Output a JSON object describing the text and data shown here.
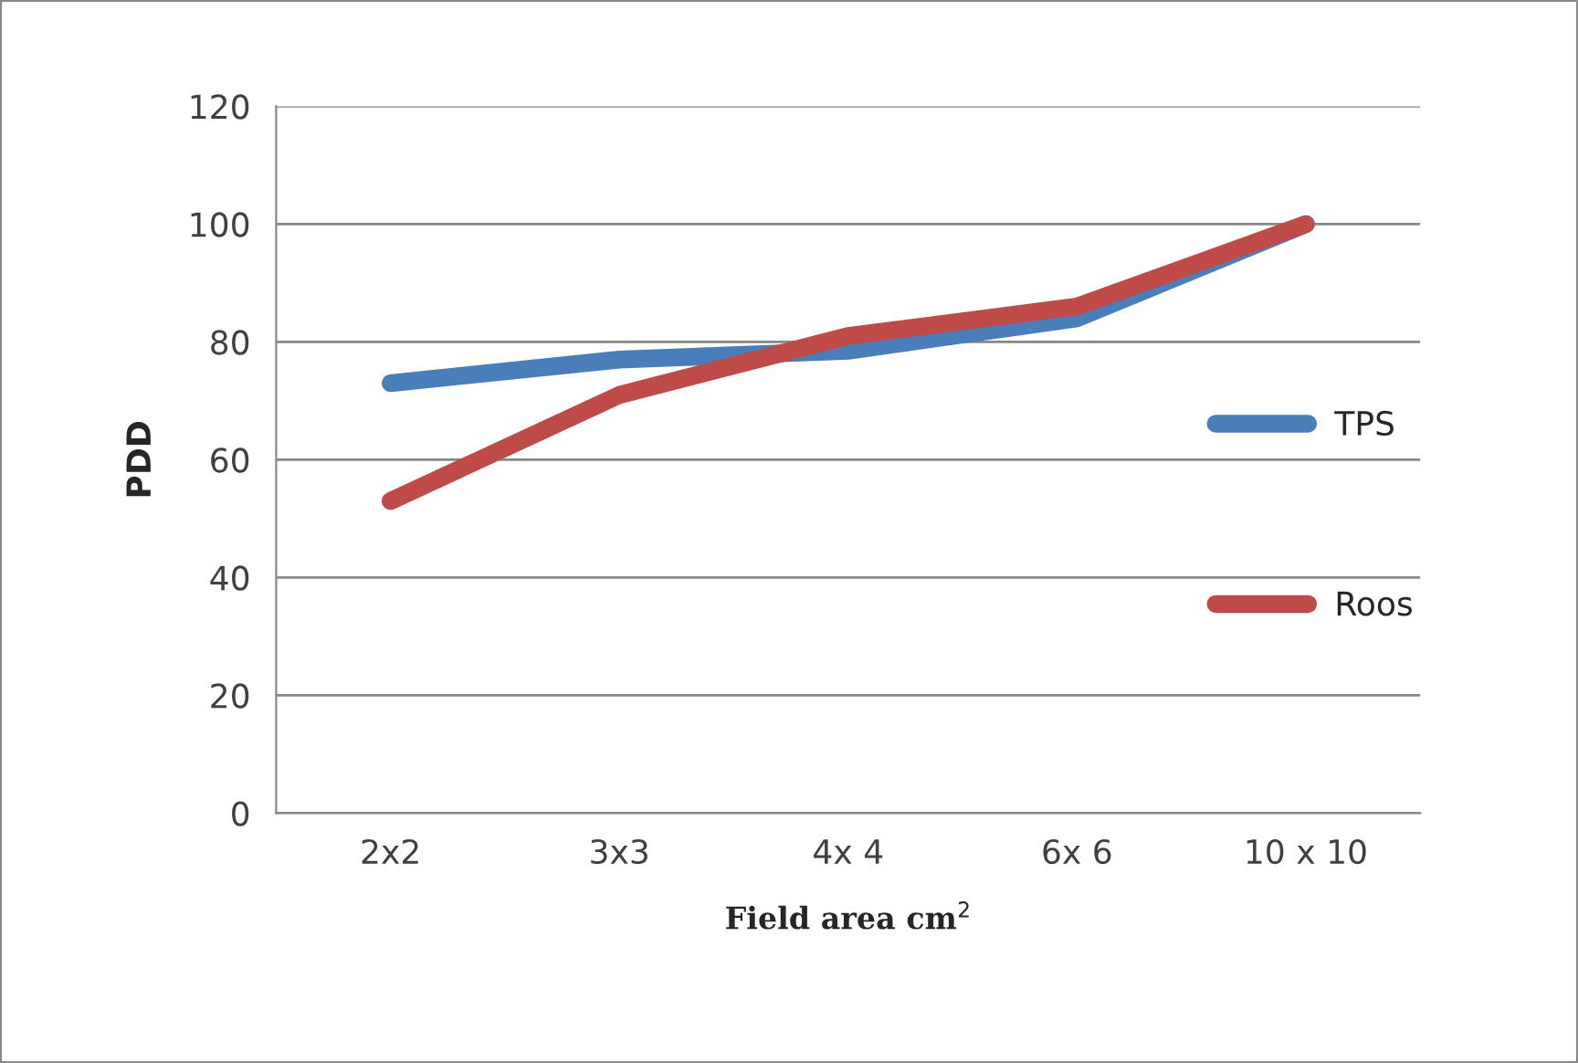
{
  "chart_data": {
    "type": "line",
    "xlabel": "Field area cm$^{2}$",
    "ylabel": "PDD",
    "categories": [
      "2x2",
      "3x3",
      "4x 4",
      "6x 6",
      "10 x 10"
    ],
    "series": [
      {
        "name": "TPS",
        "color": "#4a7ebb",
        "values": [
          73,
          77,
          78.5,
          84,
          100
        ]
      },
      {
        "name": "Roos",
        "color": "#be4b48",
        "values": [
          53,
          71,
          81,
          86,
          100
        ]
      }
    ],
    "ylim": [
      0,
      120
    ],
    "yticks": [
      0,
      20,
      40,
      60,
      80,
      100,
      120
    ],
    "grid": "y",
    "legend": "right",
    "marker": "none",
    "line_style": "solid"
  }
}
